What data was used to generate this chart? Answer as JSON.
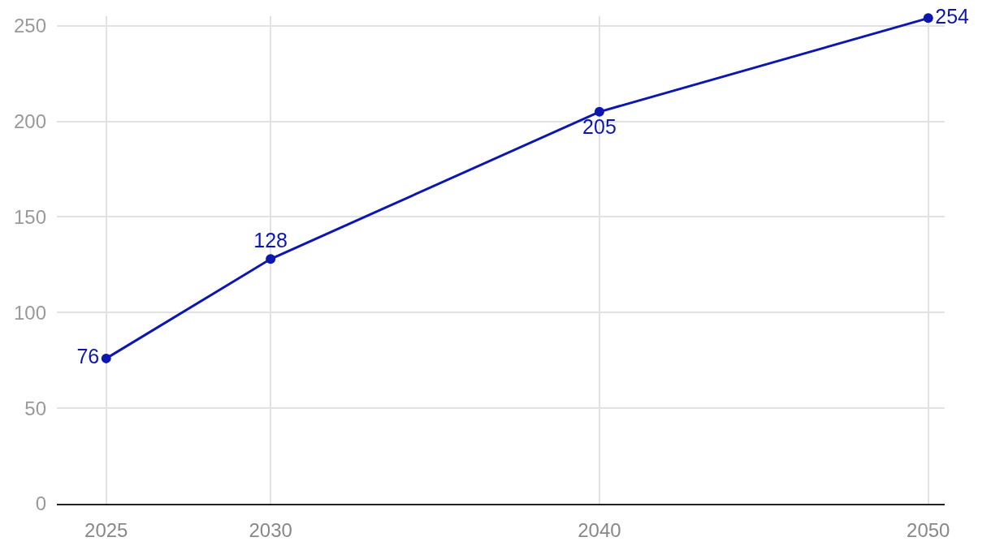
{
  "chart_data": {
    "type": "line",
    "x": [
      2025,
      2030,
      2040,
      2050
    ],
    "series": [
      {
        "color": "#0c16b0",
        "values": [
          76,
          128,
          205,
          254
        ]
      }
    ],
    "xlim": [
      2023.5,
      2050.5
    ],
    "xticks": [
      2025,
      2030,
      2040,
      2050
    ],
    "ylim": [
      0,
      255
    ],
    "yticks": [
      0,
      50,
      100,
      150,
      200,
      250
    ],
    "grid": true,
    "marker": "circle",
    "line_style": "solid",
    "data_labels": true,
    "legend": false
  }
}
